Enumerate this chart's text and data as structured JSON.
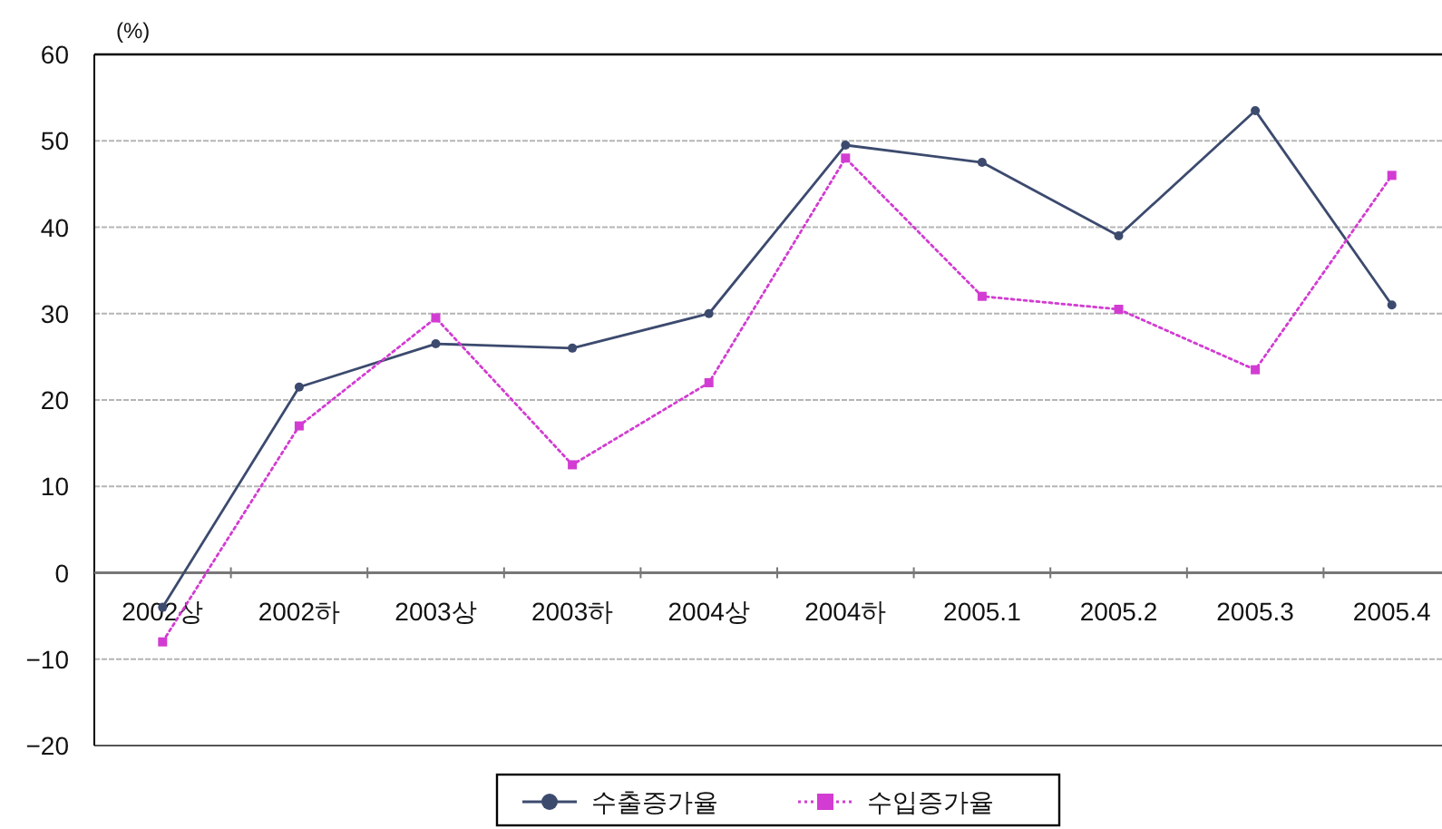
{
  "chart_data": {
    "type": "line",
    "ylabel": "(%)",
    "categories": [
      "2002상",
      "2002하",
      "2003상",
      "2003하",
      "2004상",
      "2004하",
      "2005.1",
      "2005.2",
      "2005.3",
      "2005.4"
    ],
    "series": [
      {
        "name": "수출증가율",
        "color": "#3c4a6e",
        "values": [
          -4,
          21.5,
          26.5,
          26,
          30,
          49.5,
          47.5,
          39,
          53.5,
          31
        ],
        "marker": "circle",
        "line_style": "solid"
      },
      {
        "name": "수입증가율",
        "color": "#d23cd2",
        "values": [
          -8,
          17,
          29.5,
          12.5,
          22,
          48,
          32,
          30.5,
          23.5,
          46
        ],
        "marker": "square",
        "line_style": "dotted"
      }
    ],
    "ylim": [
      -20,
      60
    ],
    "yticks": [
      -20,
      -10,
      0,
      10,
      20,
      30,
      40,
      50,
      60
    ],
    "grid": "y",
    "legend": "bottom"
  }
}
